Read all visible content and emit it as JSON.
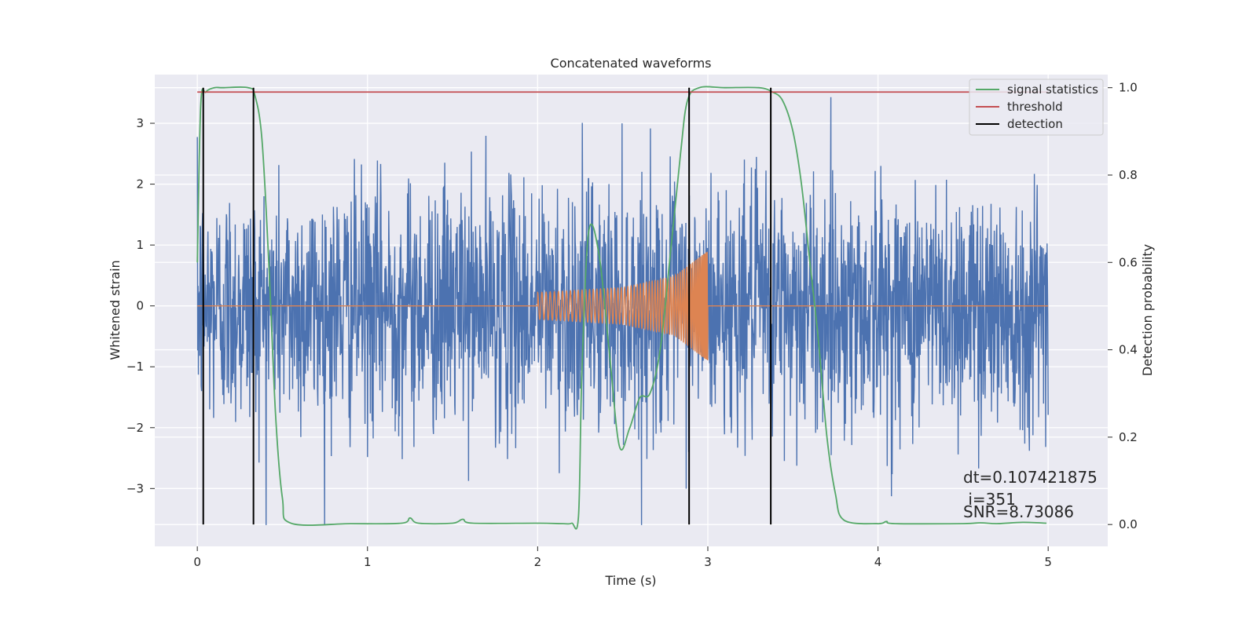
{
  "chart_data": {
    "type": "line",
    "title": "Concatenated waveforms",
    "xlabel": "Time (s)",
    "ylabel": "Whitened strain",
    "ylabel_right": "Detection probability",
    "xlim": [
      -0.25,
      5.35
    ],
    "ylim": [
      -3.95,
      3.8
    ],
    "ylim_right": [
      -0.05,
      1.03
    ],
    "xticks": [
      0,
      1,
      2,
      3,
      4,
      5
    ],
    "xtick_labels": [
      "0",
      "1",
      "2",
      "3",
      "4",
      "5"
    ],
    "yticks": [
      -3,
      -2,
      -1,
      0,
      1,
      2,
      3
    ],
    "ytick_labels": [
      "−3",
      "−2",
      "−1",
      "0",
      "1",
      "2",
      "3"
    ],
    "yticks_right": [
      0.0,
      0.2,
      0.4,
      0.6,
      0.8,
      1.0
    ],
    "ytick_labels_right": [
      "0.0",
      "0.2",
      "0.4",
      "0.6",
      "0.8",
      "1.0"
    ],
    "grid": true,
    "legend_position": "top-right",
    "colors": {
      "background": "#EAEAF2",
      "grid": "#FFFFFF",
      "noise": "#4C72B0",
      "waveform": "#DD8452",
      "statistics": "#55A868",
      "threshold": "#C44E52",
      "detection": "#000000"
    },
    "series": [
      {
        "name": "",
        "kind": "noisy whitened strain",
        "x_range": [
          0,
          5
        ],
        "approx_amplitude_range": [
          -3.6,
          3.6
        ]
      },
      {
        "name": "",
        "kind": "chirp waveform",
        "x": [
          0,
          2.0,
          2.5,
          2.8,
          2.95,
          3.0,
          5.0
        ],
        "envelope": [
          0,
          0.22,
          0.3,
          0.48,
          0.8,
          0.9,
          0
        ]
      },
      {
        "name": "signal statistics",
        "axis": "right",
        "x": [
          0,
          0.02,
          0.05,
          0.1,
          0.15,
          0.3,
          0.34,
          0.38,
          0.42,
          0.46,
          0.5,
          0.55,
          0.9,
          1.2,
          1.25,
          1.3,
          1.5,
          1.56,
          1.62,
          2.0,
          2.15,
          2.2,
          2.24,
          2.26,
          2.3,
          2.36,
          2.42,
          2.48,
          2.54,
          2.6,
          2.66,
          2.72,
          2.78,
          2.84,
          2.88,
          2.95,
          3.1,
          3.3,
          3.38,
          3.44,
          3.5,
          3.55,
          3.6,
          3.65,
          3.7,
          3.75,
          3.8,
          4.0,
          4.05,
          4.1,
          4.5,
          4.6,
          4.7,
          4.85,
          4.99
        ],
        "values": [
          0.6,
          0.96,
          0.99,
          1.0,
          1.0,
          1.0,
          0.98,
          0.88,
          0.6,
          0.25,
          0.06,
          0.003,
          0.002,
          0.003,
          0.015,
          0.003,
          0.003,
          0.012,
          0.003,
          0.003,
          0.002,
          0.003,
          0.02,
          0.35,
          0.67,
          0.62,
          0.4,
          0.18,
          0.22,
          0.29,
          0.3,
          0.4,
          0.62,
          0.85,
          0.97,
          1.0,
          1.0,
          1.0,
          0.99,
          0.97,
          0.9,
          0.78,
          0.6,
          0.42,
          0.2,
          0.07,
          0.01,
          0.002,
          0.007,
          0.002,
          0.002,
          0.004,
          0.002,
          0.005,
          0.003
        ]
      },
      {
        "name": "threshold",
        "axis": "right",
        "x": [
          0,
          5
        ],
        "values": [
          0.99,
          0.99
        ]
      },
      {
        "name": "detection",
        "kind": "vertical lines",
        "x": [
          0.035,
          0.33,
          2.89,
          3.37
        ]
      }
    ],
    "annotations": [
      "dt=0.107421875",
      " i=351",
      "SNR=8.73086"
    ]
  }
}
